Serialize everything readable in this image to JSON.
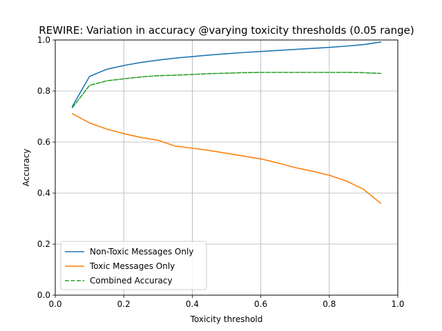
{
  "chart_data": {
    "type": "line",
    "title": "REWIRE: Variation in accuracy @varying toxicity thresholds (0.05 range)",
    "xlabel": "Toxicity threshold",
    "ylabel": "Accuracy",
    "xlim": [
      0.0,
      1.0
    ],
    "ylim": [
      0.0,
      1.0
    ],
    "xticks": [
      0.0,
      0.2,
      0.4,
      0.6,
      0.8,
      1.0
    ],
    "yticks": [
      0.0,
      0.2,
      0.4,
      0.6,
      0.8,
      1.0
    ],
    "xtick_labels": [
      "0.0",
      "0.2",
      "0.4",
      "0.6",
      "0.8",
      "1.0"
    ],
    "ytick_labels": [
      "0.0",
      "0.2",
      "0.4",
      "0.6",
      "0.8",
      "1.0"
    ],
    "grid": true,
    "legend_position": "bottom-left",
    "x": [
      0.05,
      0.1,
      0.15,
      0.2,
      0.25,
      0.3,
      0.35,
      0.4,
      0.45,
      0.5,
      0.55,
      0.6,
      0.65,
      0.7,
      0.75,
      0.8,
      0.85,
      0.9,
      0.95
    ],
    "series": [
      {
        "name": "Non-Toxic Messages Only",
        "color": "#1f77b4",
        "dash": "solid",
        "values": [
          0.74,
          0.857,
          0.885,
          0.9,
          0.912,
          0.921,
          0.929,
          0.935,
          0.941,
          0.946,
          0.951,
          0.955,
          0.959,
          0.963,
          0.967,
          0.971,
          0.976,
          0.982,
          0.992
        ]
      },
      {
        "name": "Toxic Messages Only",
        "color": "#ff7f0e",
        "dash": "solid",
        "values": [
          0.711,
          0.675,
          0.651,
          0.633,
          0.618,
          0.607,
          0.584,
          0.576,
          0.567,
          0.556,
          0.545,
          0.534,
          0.518,
          0.5,
          0.486,
          0.47,
          0.447,
          0.415,
          0.36
        ]
      },
      {
        "name": "Combined Accuracy",
        "color": "#2ca02c",
        "dash": "dashed",
        "values": [
          0.735,
          0.822,
          0.84,
          0.848,
          0.855,
          0.86,
          0.862,
          0.865,
          0.868,
          0.87,
          0.872,
          0.873,
          0.873,
          0.873,
          0.873,
          0.873,
          0.873,
          0.872,
          0.869
        ]
      }
    ]
  }
}
